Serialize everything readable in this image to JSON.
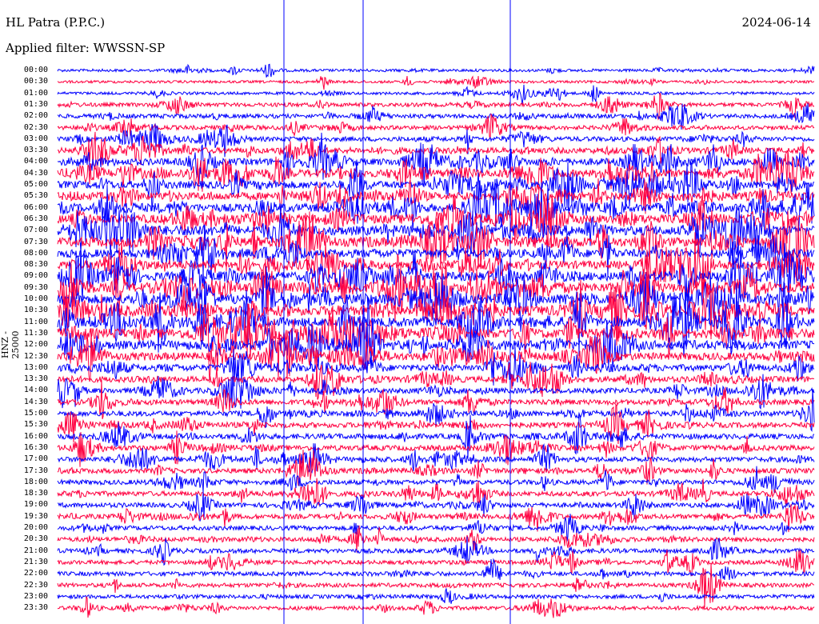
{
  "header": {
    "station": "HL Patra (P.P.C.)",
    "date": "2024-06-14",
    "filter": "Applied filter: WWSSN-SP"
  },
  "chart_data": {
    "type": "line",
    "title": "HL Patra (P.P.C.)",
    "ylabel": "HNZ - 25000",
    "row_interval_minutes": 30,
    "row_labels": [
      "00:00",
      "00:30",
      "01:00",
      "01:30",
      "02:00",
      "02:30",
      "03:00",
      "03:30",
      "04:00",
      "04:30",
      "05:00",
      "05:30",
      "06:00",
      "06:30",
      "07:00",
      "07:30",
      "08:00",
      "08:30",
      "09:00",
      "09:30",
      "10:00",
      "10:30",
      "11:00",
      "11:30",
      "12:00",
      "12:30",
      "13:00",
      "13:30",
      "14:00",
      "14:30",
      "15:00",
      "15:30",
      "16:00",
      "16:30",
      "17:00",
      "17:30",
      "18:00",
      "18:30",
      "19:00",
      "19:30",
      "20:00",
      "20:30",
      "21:00",
      "21:30",
      "22:00",
      "22:30",
      "23:00",
      "23:30"
    ],
    "relative_activity": [
      0.15,
      0.12,
      0.15,
      0.35,
      0.4,
      0.4,
      0.5,
      0.7,
      0.9,
      1.0,
      1.0,
      1.0,
      1.1,
      1.2,
      1.3,
      1.2,
      1.1,
      1.1,
      1.2,
      1.3,
      1.3,
      1.3,
      1.3,
      1.3,
      1.2,
      1.0,
      0.8,
      0.7,
      0.6,
      0.6,
      0.6,
      0.6,
      0.6,
      0.6,
      0.55,
      0.55,
      0.5,
      0.5,
      0.5,
      0.5,
      0.45,
      0.45,
      0.45,
      0.4,
      0.4,
      0.4,
      0.35,
      0.35
    ],
    "colors": [
      "#0000ff",
      "#ff0040"
    ]
  }
}
